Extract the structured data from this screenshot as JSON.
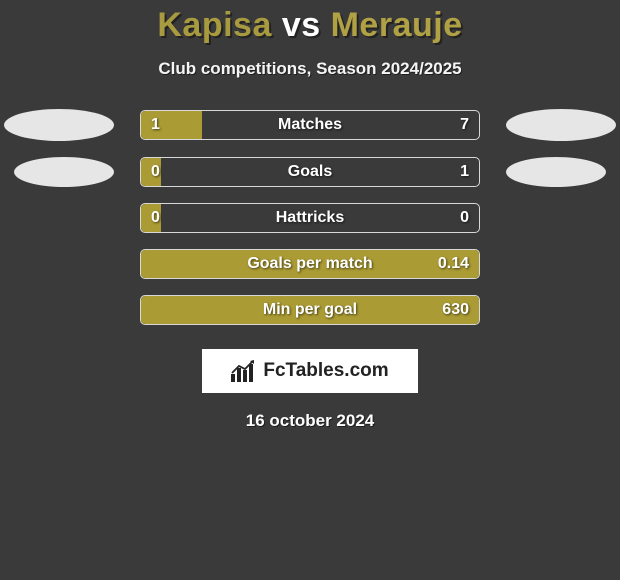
{
  "title": {
    "team1": "Kapisa",
    "vs": "vs",
    "team2": "Merauje",
    "team1_color": "#a89a3e",
    "vs_color": "#ffffff",
    "team2_color": "#b0a145"
  },
  "subtitle": "Club competitions, Season 2024/2025",
  "background_color": "#3a3a3a",
  "ellipse_color": "#e6e6e6",
  "bar_border_color": "#d8d8d8",
  "stats": [
    {
      "label": "Matches",
      "left_value": "1",
      "right_value": "7",
      "fill_pct": 18,
      "fill_color": "#aa9b34",
      "show_side_ellipse": true,
      "ellipse_size": "large"
    },
    {
      "label": "Goals",
      "left_value": "0",
      "right_value": "1",
      "fill_pct": 6,
      "fill_color": "#aa9b34",
      "show_side_ellipse": true,
      "ellipse_size": "small"
    },
    {
      "label": "Hattricks",
      "left_value": "0",
      "right_value": "0",
      "fill_pct": 6,
      "fill_color": "#aa9b34",
      "show_side_ellipse": false
    },
    {
      "label": "Goals per match",
      "left_value": "",
      "right_value": "0.14",
      "fill_pct": 100,
      "fill_color": "#aa9b34",
      "show_side_ellipse": false
    },
    {
      "label": "Min per goal",
      "left_value": "",
      "right_value": "630",
      "fill_pct": 100,
      "fill_color": "#aa9b34",
      "show_side_ellipse": false
    }
  ],
  "logo": {
    "text": "FcTables.com",
    "text_color": "#222222",
    "bg_color": "#ffffff"
  },
  "date": "16 october 2024"
}
